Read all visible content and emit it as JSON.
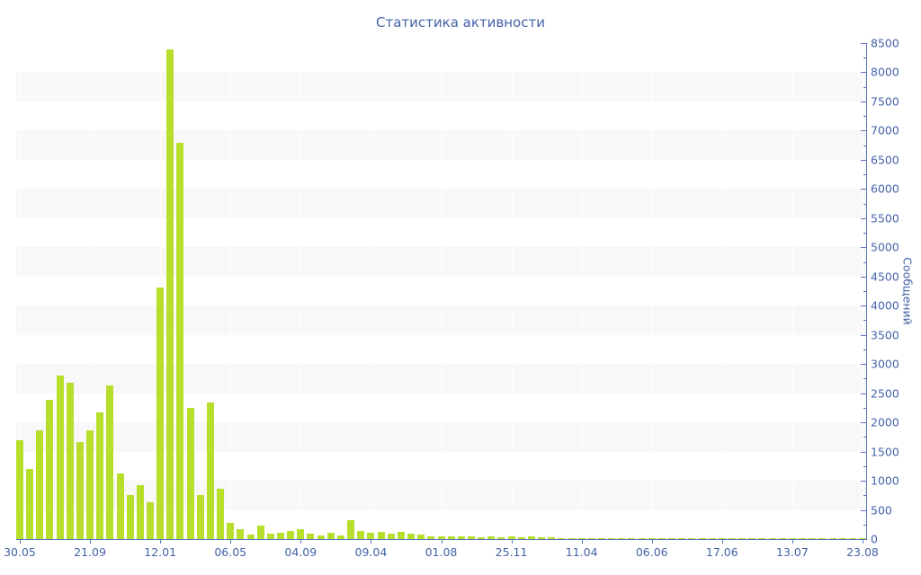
{
  "title": "Статистика активности",
  "colors": {
    "bar": "#b6de2b",
    "band": "#f8f8f8",
    "axis_line": "#5977bb",
    "text": "#4563a9",
    "background": "#ffffff"
  },
  "chart_data": {
    "type": "bar",
    "title": "Статистика активности",
    "xlabel": "",
    "ylabel": "Сообщений",
    "ylim": [
      0,
      8500
    ],
    "y_major_step": 500,
    "y_minor_step": 250,
    "grid": "alternating horizontal bands every 500 units; faint vertical white lines at labeled x positions",
    "legend": "none",
    "x_tick_every": 7,
    "x_tick_labels": [
      "30.05",
      "21.09",
      "12.01",
      "06.05",
      "04.09",
      "09.04",
      "01.08",
      "25.11",
      "11.04",
      "06.06",
      "17.06",
      "13.07",
      "23.08"
    ],
    "values": [
      1700,
      1200,
      1860,
      2390,
      2800,
      2680,
      1670,
      1860,
      2170,
      2630,
      1130,
      760,
      920,
      630,
      4310,
      8390,
      6790,
      2250,
      760,
      2340,
      860,
      280,
      170,
      80,
      230,
      90,
      110,
      140,
      170,
      90,
      60,
      110,
      60,
      320,
      140,
      110,
      120,
      100,
      120,
      100,
      80,
      50,
      40,
      40,
      50,
      40,
      30,
      40,
      30,
      40,
      30,
      40,
      25,
      25,
      20,
      20,
      20,
      20,
      20,
      20,
      20,
      20,
      20,
      20,
      20,
      20,
      20,
      20,
      20,
      20,
      20,
      15,
      20,
      15,
      20,
      15,
      20,
      15,
      20,
      15,
      20,
      15,
      20,
      15,
      20
    ]
  }
}
